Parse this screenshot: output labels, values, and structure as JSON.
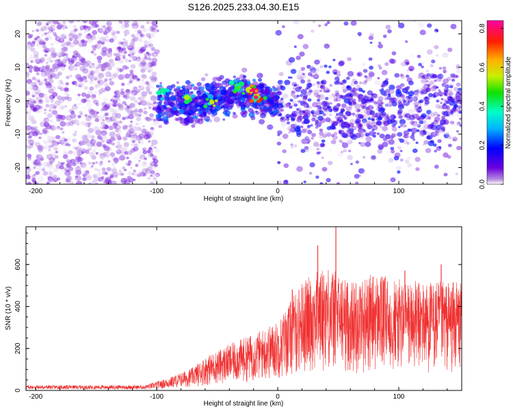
{
  "title": "S126.2025.233.04.30.E15",
  "colors": {
    "snr_line": "#f03232",
    "axis": "#000000",
    "scatter_min": "#e8d6f7",
    "scatter_max": "#4400cc"
  },
  "chart_data": [
    {
      "type": "heatmap",
      "name": "spectrogram",
      "xlabel": "Height of straight line (km)",
      "ylabel": "Frequency (Hz)",
      "xlim": [
        -208,
        152
      ],
      "ylim": [
        -25,
        24
      ],
      "xticks": [
        -200,
        -100,
        0,
        100
      ],
      "yticks": [
        -20,
        -10,
        0,
        10,
        20
      ],
      "colorbar": {
        "label": "Normalized spectral amplitude",
        "range": [
          0,
          0.84
        ],
        "ticks": [
          "0.0",
          "0.2",
          "0.4",
          "0.6",
          "0.8"
        ],
        "tick_values": [
          0,
          0.2,
          0.4,
          0.6,
          0.8
        ],
        "colormap": "rainbow (purple-blue-cyan-green-yellow-red-magenta)"
      },
      "regions": [
        {
          "x_range": [
            -208,
            -99
          ],
          "f_range": [
            -25,
            24
          ],
          "density": "high",
          "amplitude": "low (purple)"
        },
        {
          "x_range": [
            -99,
            0
          ],
          "center_freq": 0,
          "spread": 6,
          "amplitude": "moderate-high (blue to red)"
        },
        {
          "x_range": [
            0,
            152
          ],
          "center_freq": -2,
          "spread": 12,
          "amplitude": "low-moderate (purple/blue)"
        }
      ],
      "hotspots": [
        {
          "x": -22,
          "freq": 3,
          "amplitude": 0.82
        },
        {
          "x": -18,
          "freq": 1,
          "amplitude": 0.8
        },
        {
          "x": -55,
          "freq": 0,
          "amplitude": 0.6
        },
        {
          "x": -75,
          "freq": 1,
          "amplitude": 0.55
        },
        {
          "x": -32,
          "freq": 4,
          "amplitude": 0.5
        },
        {
          "x": -95,
          "freq": 3,
          "amplitude": 0.4
        }
      ]
    },
    {
      "type": "line",
      "name": "snr",
      "xlabel": "Height of straight line (km)",
      "ylabel": "SNR (10 * v/v)",
      "xlim": [
        -208,
        152
      ],
      "ylim": [
        0,
        780
      ],
      "xticks": [
        -200,
        -100,
        0,
        100
      ],
      "yticks": [
        0,
        200,
        400,
        600
      ],
      "series": [
        {
          "name": "SNR",
          "envelope": [
            {
              "x": -208,
              "max": 25
            },
            {
              "x": -110,
              "max": 25
            },
            {
              "x": -90,
              "max": 60
            },
            {
              "x": -70,
              "max": 110
            },
            {
              "x": -60,
              "max": 160
            },
            {
              "x": -40,
              "max": 220
            },
            {
              "x": -20,
              "max": 270
            },
            {
              "x": 0,
              "max": 330
            },
            {
              "x": 20,
              "max": 520
            },
            {
              "x": 40,
              "max": 600
            },
            {
              "x": 60,
              "max": 520
            },
            {
              "x": 80,
              "max": 560
            },
            {
              "x": 100,
              "max": 530
            },
            {
              "x": 120,
              "max": 520
            },
            {
              "x": 152,
              "max": 520
            }
          ],
          "peaks": [
            {
              "x": 48,
              "value": 780
            },
            {
              "x": 33,
              "value": 690
            },
            {
              "x": 135,
              "value": 600
            },
            {
              "x": 105,
              "value": 570
            },
            {
              "x": 12,
              "value": 480
            }
          ]
        }
      ]
    }
  ]
}
